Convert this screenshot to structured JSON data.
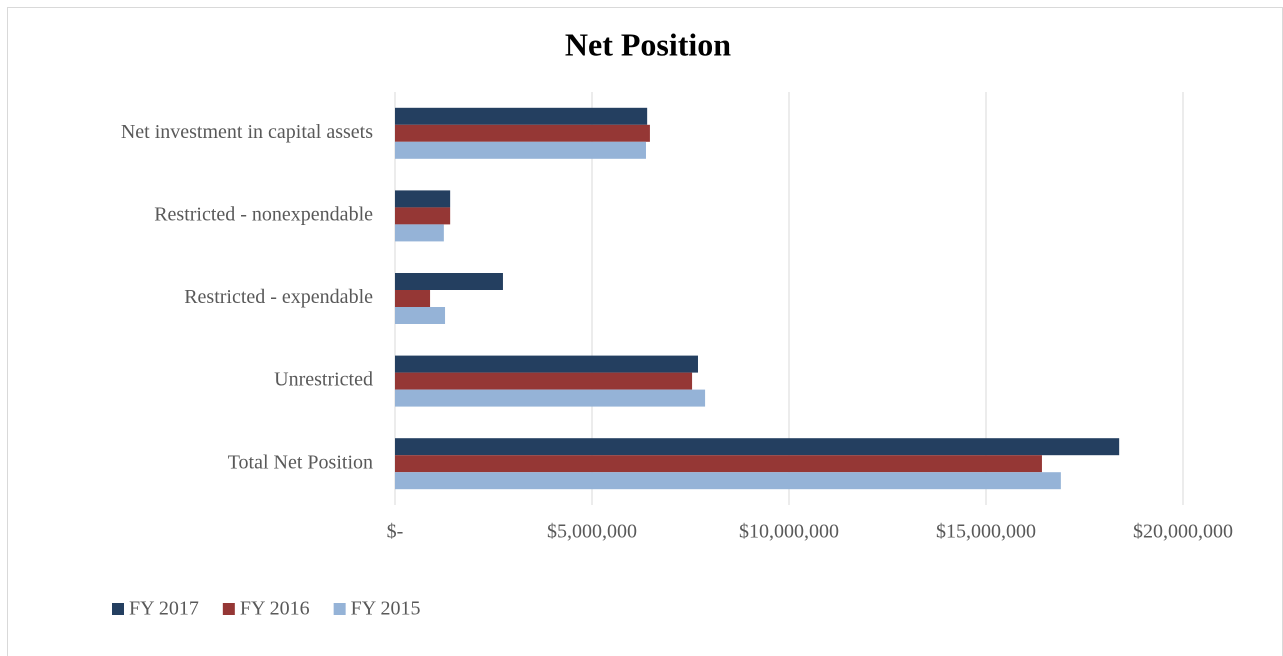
{
  "chart_data": {
    "type": "bar",
    "orientation": "horizontal",
    "title": "Net Position",
    "categories": [
      "Net investment in capital assets",
      "Restricted - nonexpendable",
      "Restricted - expendable",
      "Unrestricted",
      "Total Net Position"
    ],
    "series": [
      {
        "name": "FY 2017",
        "color": "#243f60",
        "values": [
          6400000,
          1400000,
          2740000,
          7690000,
          18380000
        ]
      },
      {
        "name": "FY 2016",
        "color": "#953735",
        "values": [
          6470000,
          1400000,
          890000,
          7540000,
          16420000
        ]
      },
      {
        "name": "FY 2015",
        "color": "#95b3d7",
        "values": [
          6370000,
          1240000,
          1270000,
          7870000,
          16900000
        ]
      }
    ],
    "xlim": [
      0,
      20000000
    ],
    "xticks": [
      {
        "value": 0,
        "label": "$-"
      },
      {
        "value": 5000000,
        "label": "$5,000,000"
      },
      {
        "value": 10000000,
        "label": "$10,000,000"
      },
      {
        "value": 15000000,
        "label": "$15,000,000"
      },
      {
        "value": 20000000,
        "label": "$20,000,000"
      }
    ],
    "grid": true,
    "legend": "bottom-left"
  }
}
